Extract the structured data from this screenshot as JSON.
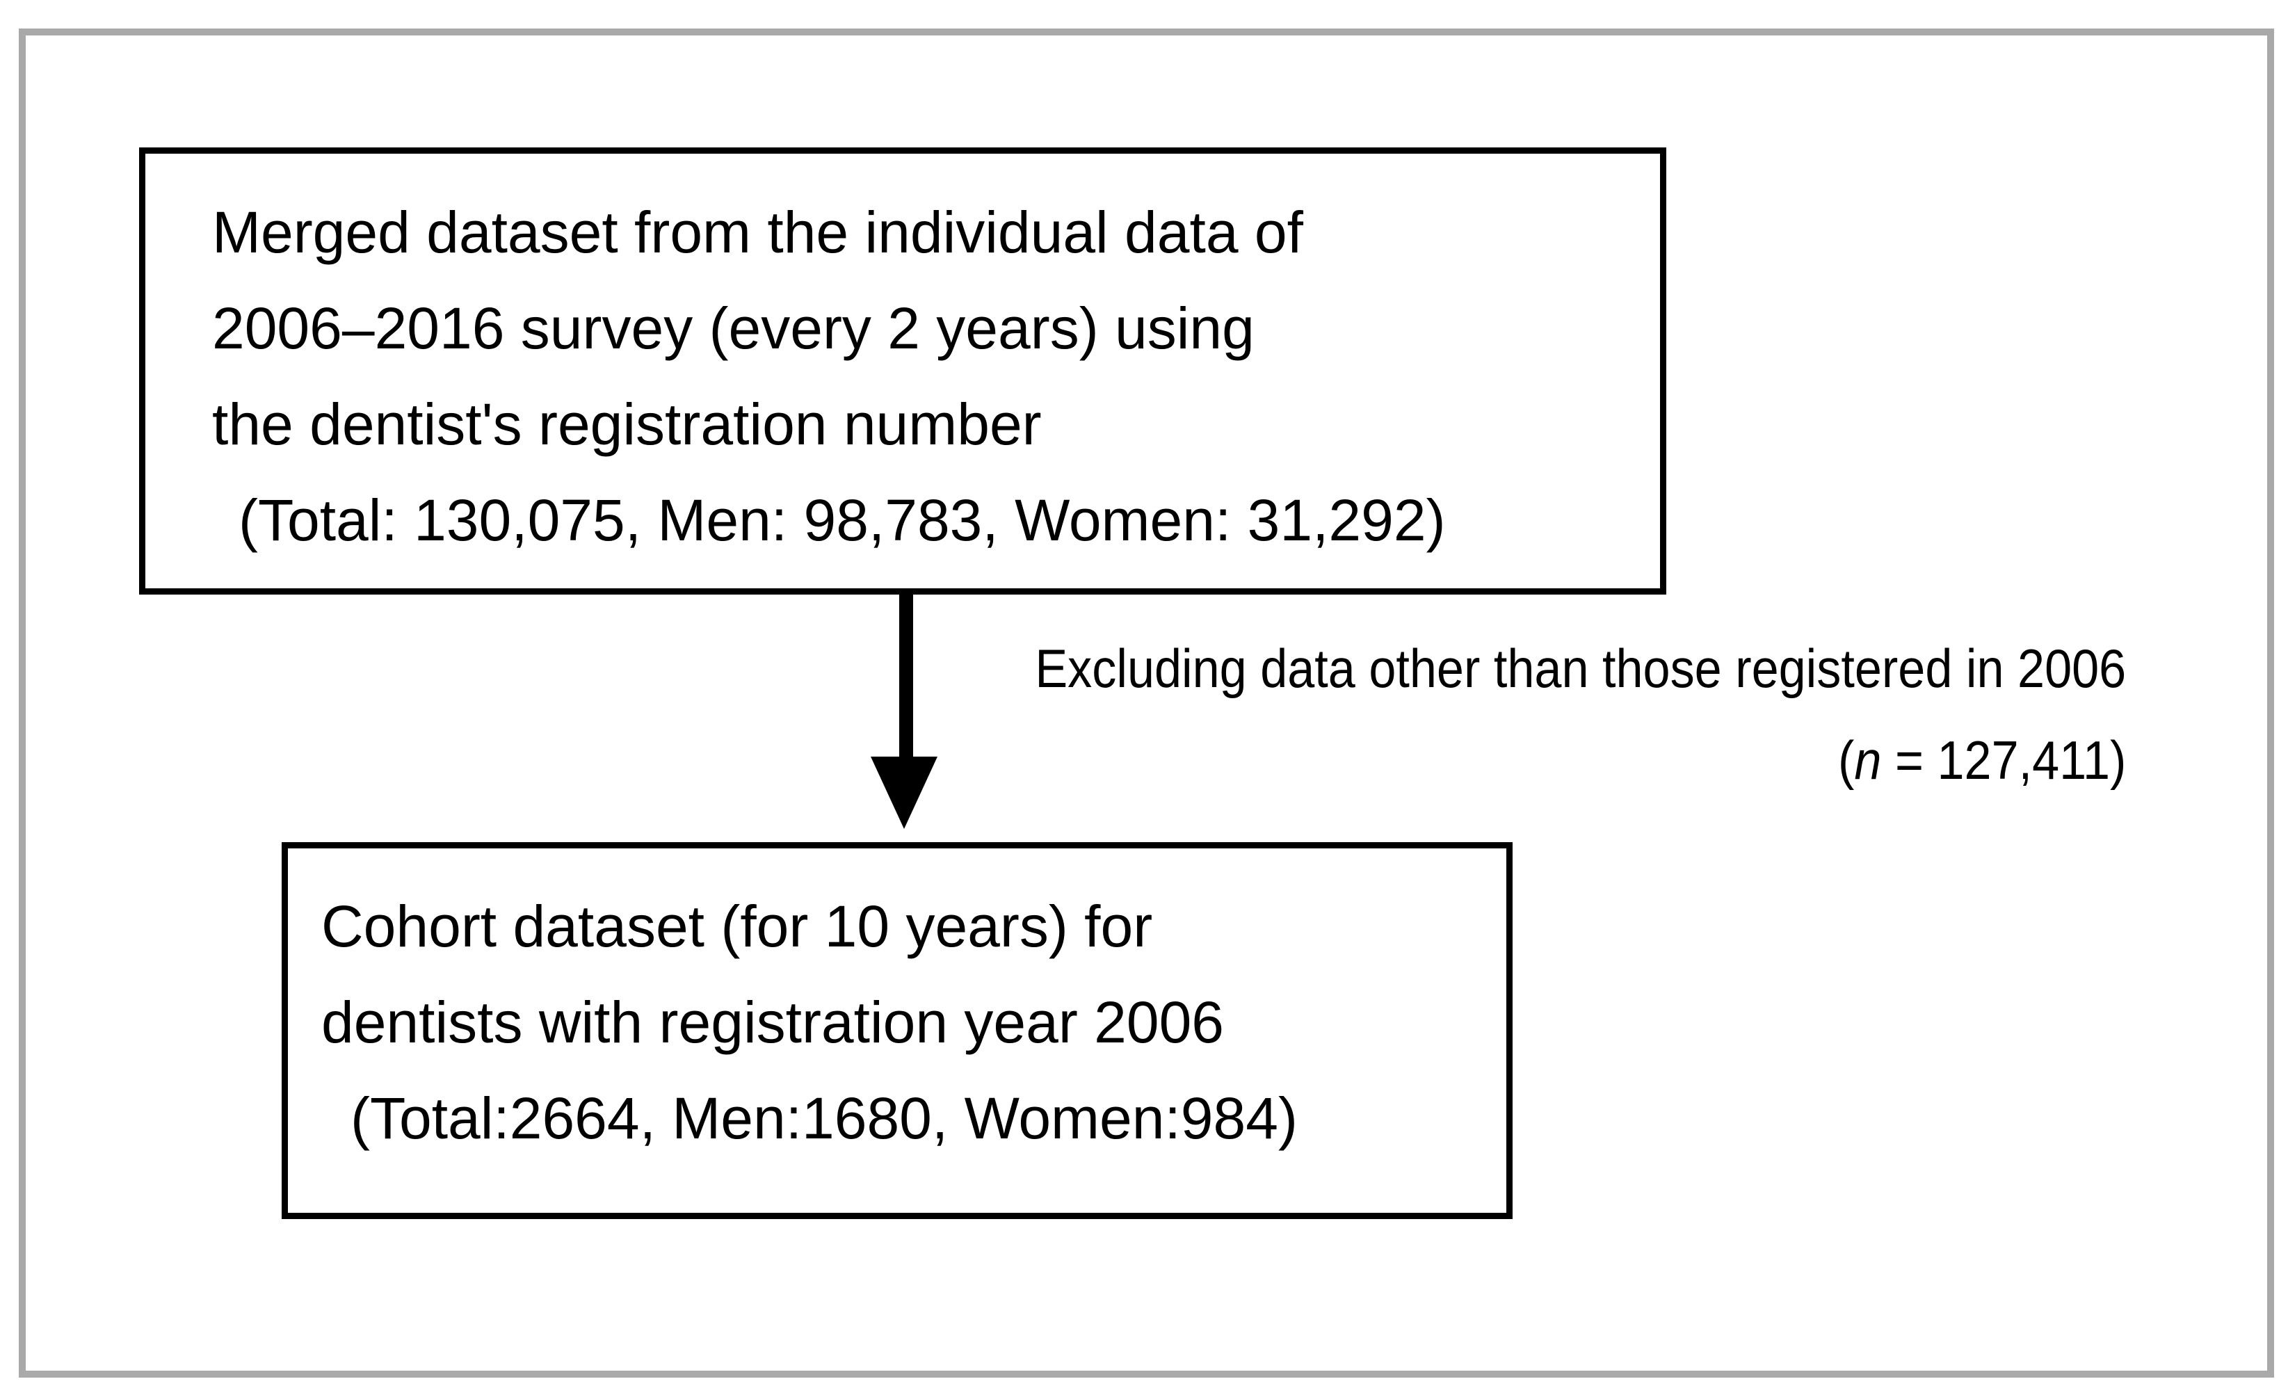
{
  "colors": {
    "background": "#ffffff",
    "frame_border": "#a9a9a9",
    "box_border": "#000000",
    "text": "#000000",
    "arrow": "#000000"
  },
  "top_box": {
    "line1": "Merged dataset from the individual data of",
    "line2": "2006–2016 survey (every 2 years) using",
    "line3": "the dentist's registration number",
    "stats": "(Total: 130,075, Men: 98,783, Women: 31,292)"
  },
  "arrow_note": {
    "line1": "Excluding data other than those registered in 2006",
    "n_open": "(",
    "n_symbol": "n",
    "n_rest": " = 127,411)"
  },
  "bottom_box": {
    "line1": "Cohort dataset (for 10 years) for",
    "line2": "dentists with registration year 2006",
    "stats": "(Total:2664, Men:1680, Women:984)"
  }
}
